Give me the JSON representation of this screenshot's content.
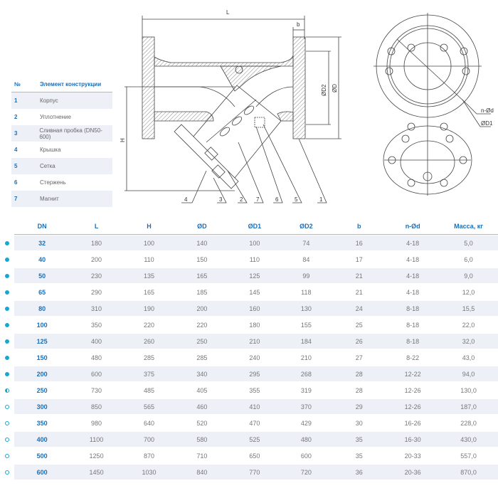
{
  "legend": {
    "header_num": "№",
    "header_name": "Элемент конструкции",
    "items": [
      {
        "num": "1",
        "name": "Корпус"
      },
      {
        "num": "2",
        "name": "Уплотнение"
      },
      {
        "num": "3",
        "name": "Сливная пробка  (DN50-600)"
      },
      {
        "num": "4",
        "name": "Крышка"
      },
      {
        "num": "5",
        "name": "Сетка"
      },
      {
        "num": "6",
        "name": "Стержень"
      },
      {
        "num": "7",
        "name": "Магнит"
      }
    ]
  },
  "drawing": {
    "dim_L": "L",
    "dim_b": "b",
    "dim_D2": "ØD2",
    "dim_D": "ØD",
    "dim_H": "H",
    "dim_nd": "n-Ød",
    "dim_D1": "ØD1",
    "callouts": [
      "4",
      "3",
      "2",
      "7",
      "6",
      "5",
      "1"
    ]
  },
  "spec_table": {
    "headers": [
      "DN",
      "L",
      "H",
      "ØD",
      "ØD1",
      "ØD2",
      "b",
      "n-Ød",
      "Масса, кг"
    ],
    "rows": [
      {
        "marker": "filled",
        "cells": [
          "32",
          "180",
          "100",
          "140",
          "100",
          "74",
          "16",
          "4-18",
          "5,0"
        ]
      },
      {
        "marker": "filled",
        "cells": [
          "40",
          "200",
          "110",
          "150",
          "110",
          "84",
          "17",
          "4-18",
          "6,0"
        ]
      },
      {
        "marker": "filled",
        "cells": [
          "50",
          "230",
          "135",
          "165",
          "125",
          "99",
          "21",
          "4-18",
          "9,0"
        ]
      },
      {
        "marker": "filled",
        "cells": [
          "65",
          "290",
          "165",
          "185",
          "145",
          "118",
          "21",
          "4-18",
          "12,0"
        ]
      },
      {
        "marker": "filled",
        "cells": [
          "80",
          "310",
          "190",
          "200",
          "160",
          "130",
          "24",
          "8-18",
          "15,5"
        ]
      },
      {
        "marker": "filled",
        "cells": [
          "100",
          "350",
          "220",
          "220",
          "180",
          "155",
          "25",
          "8-18",
          "22,0"
        ]
      },
      {
        "marker": "filled",
        "cells": [
          "125",
          "400",
          "260",
          "250",
          "210",
          "184",
          "26",
          "8-18",
          "32,0"
        ]
      },
      {
        "marker": "filled",
        "cells": [
          "150",
          "480",
          "285",
          "285",
          "240",
          "210",
          "27",
          "8-22",
          "43,0"
        ]
      },
      {
        "marker": "filled",
        "cells": [
          "200",
          "600",
          "375",
          "340",
          "295",
          "268",
          "28",
          "12-22",
          "94,0"
        ]
      },
      {
        "marker": "half",
        "cells": [
          "250",
          "730",
          "485",
          "405",
          "355",
          "319",
          "28",
          "12-26",
          "130,0"
        ]
      },
      {
        "marker": "hollow",
        "cells": [
          "300",
          "850",
          "565",
          "460",
          "410",
          "370",
          "29",
          "12-26",
          "187,0"
        ]
      },
      {
        "marker": "hollow",
        "cells": [
          "350",
          "980",
          "640",
          "520",
          "470",
          "429",
          "30",
          "16-26",
          "228,0"
        ]
      },
      {
        "marker": "hollow",
        "cells": [
          "400",
          "1100",
          "700",
          "580",
          "525",
          "480",
          "35",
          "16-30",
          "430,0"
        ]
      },
      {
        "marker": "hollow",
        "cells": [
          "500",
          "1250",
          "870",
          "710",
          "650",
          "600",
          "35",
          "20-33",
          "557,0"
        ]
      },
      {
        "marker": "hollow",
        "cells": [
          "600",
          "1450",
          "1030",
          "840",
          "770",
          "720",
          "36",
          "20-36",
          "870,0"
        ]
      }
    ]
  },
  "colors": {
    "accent": "#1a6fb8",
    "marker": "#14a8d0",
    "row_shade": "#eef0f8"
  }
}
